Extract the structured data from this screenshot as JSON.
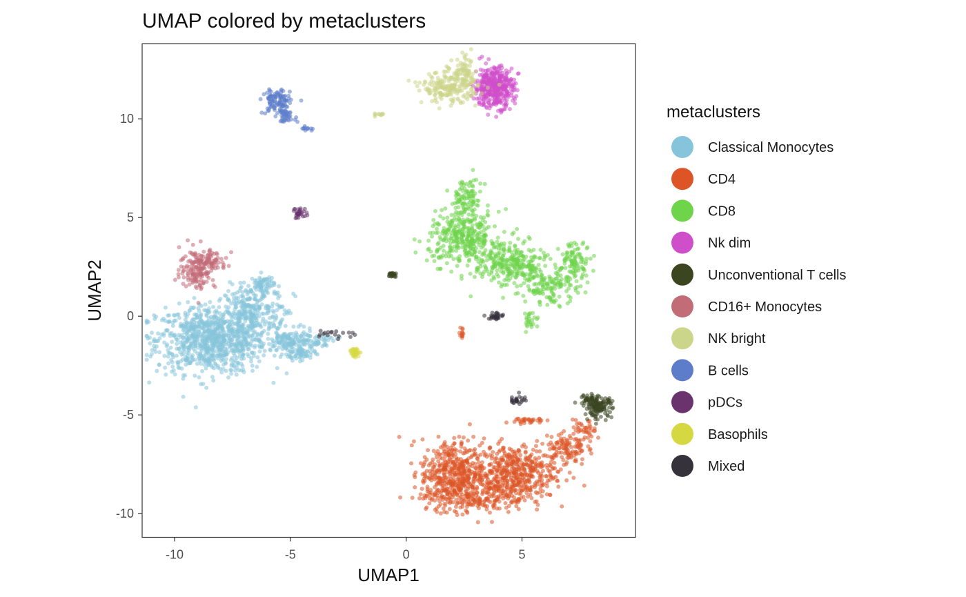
{
  "chart_data": {
    "type": "scatter",
    "title": "UMAP colored by metaclusters",
    "xlabel": "UMAP1",
    "ylabel": "UMAP2",
    "xlim": [
      -11.4,
      9.9
    ],
    "ylim": [
      -11.2,
      13.8
    ],
    "xticks": [
      -10,
      -5,
      0,
      5
    ],
    "xtick_labels": [
      "-10",
      "-5",
      "0",
      "5"
    ],
    "yticks": [
      -10,
      -5,
      0,
      5,
      10
    ],
    "ytick_labels": [
      "-10",
      "-5",
      "0",
      "5",
      "10"
    ],
    "grid": false,
    "legend": {
      "title": "metaclusters",
      "position": "right"
    },
    "series": [
      {
        "name": "Classical Monocytes",
        "color": "#86C4DB",
        "clusters": [
          {
            "cx": -8.4,
            "cy": -1.2,
            "sx": 1.4,
            "sy": 1.0,
            "n": 900
          },
          {
            "cx": -6.8,
            "cy": 0.2,
            "sx": 0.6,
            "sy": 0.8,
            "n": 220
          },
          {
            "cx": -6.2,
            "cy": 1.6,
            "sx": 0.3,
            "sy": 0.3,
            "n": 70
          },
          {
            "cx": -5.0,
            "cy": -1.3,
            "sx": 0.6,
            "sy": 0.35,
            "n": 140
          },
          {
            "cx": -4.6,
            "cy": -1.9,
            "sx": 0.4,
            "sy": 0.2,
            "n": 60
          },
          {
            "cx": -3.8,
            "cy": -1.2,
            "sx": 0.5,
            "sy": 0.2,
            "n": 40
          },
          {
            "cx": -5.5,
            "cy": 0.4,
            "sx": 0.4,
            "sy": 0.6,
            "n": 40
          }
        ]
      },
      {
        "name": "CD4",
        "color": "#DD5526",
        "clusters": [
          {
            "cx": 2.0,
            "cy": -7.9,
            "sx": 0.8,
            "sy": 1.0,
            "n": 400
          },
          {
            "cx": 4.6,
            "cy": -7.9,
            "sx": 1.1,
            "sy": 0.8,
            "n": 450
          },
          {
            "cx": 3.0,
            "cy": -9.0,
            "sx": 1.3,
            "sy": 0.55,
            "n": 250
          },
          {
            "cx": 6.9,
            "cy": -6.7,
            "sx": 0.5,
            "sy": 0.5,
            "n": 110
          },
          {
            "cx": 7.7,
            "cy": -5.8,
            "sx": 0.3,
            "sy": 0.3,
            "n": 40
          },
          {
            "cx": 5.3,
            "cy": -5.3,
            "sx": 0.4,
            "sy": 0.12,
            "n": 30
          },
          {
            "cx": 2.4,
            "cy": -0.9,
            "sx": 0.07,
            "sy": 0.2,
            "n": 12
          }
        ]
      },
      {
        "name": "CD8",
        "color": "#6ED44A",
        "clusters": [
          {
            "cx": 2.5,
            "cy": 4.0,
            "sx": 0.9,
            "sy": 0.8,
            "n": 350
          },
          {
            "cx": 2.6,
            "cy": 6.0,
            "sx": 0.4,
            "sy": 0.6,
            "n": 90
          },
          {
            "cx": 4.5,
            "cy": 2.6,
            "sx": 0.9,
            "sy": 0.7,
            "n": 280
          },
          {
            "cx": 6.3,
            "cy": 1.5,
            "sx": 0.7,
            "sy": 0.5,
            "n": 140
          },
          {
            "cx": 7.3,
            "cy": 2.9,
            "sx": 0.4,
            "sy": 0.5,
            "n": 90
          },
          {
            "cx": 5.4,
            "cy": -0.2,
            "sx": 0.2,
            "sy": 0.3,
            "n": 25
          }
        ]
      },
      {
        "name": "Nk dim",
        "color": "#CF4FCB",
        "clusters": [
          {
            "cx": 3.8,
            "cy": 11.6,
            "sx": 0.5,
            "sy": 0.6,
            "n": 420
          }
        ]
      },
      {
        "name": "Unconventional T cells",
        "color": "#3B4520",
        "clusters": [
          {
            "cx": 8.3,
            "cy": -4.6,
            "sx": 0.35,
            "sy": 0.3,
            "n": 120
          },
          {
            "cx": 7.9,
            "cy": -4.2,
            "sx": 0.3,
            "sy": 0.12,
            "n": 30
          },
          {
            "cx": -0.6,
            "cy": 2.1,
            "sx": 0.15,
            "sy": 0.08,
            "n": 25
          }
        ]
      },
      {
        "name": "CD16+ Monocytes",
        "color": "#C26C78",
        "clusters": [
          {
            "cx": -9.0,
            "cy": 2.4,
            "sx": 0.45,
            "sy": 0.6,
            "n": 150
          },
          {
            "cx": -8.4,
            "cy": 2.8,
            "sx": 0.4,
            "sy": 0.3,
            "n": 60
          }
        ]
      },
      {
        "name": "NK bright",
        "color": "#CCD68A",
        "clusters": [
          {
            "cx": 1.9,
            "cy": 11.6,
            "sx": 0.7,
            "sy": 0.45,
            "n": 220
          },
          {
            "cx": 2.5,
            "cy": 12.4,
            "sx": 0.3,
            "sy": 0.4,
            "n": 60
          },
          {
            "cx": -1.2,
            "cy": 10.2,
            "sx": 0.2,
            "sy": 0.05,
            "n": 12
          }
        ]
      },
      {
        "name": "B cells",
        "color": "#5D7DCA",
        "clusters": [
          {
            "cx": -5.6,
            "cy": 10.9,
            "sx": 0.35,
            "sy": 0.4,
            "n": 100
          },
          {
            "cx": -5.2,
            "cy": 10.2,
            "sx": 0.25,
            "sy": 0.2,
            "n": 45
          },
          {
            "cx": -4.3,
            "cy": 9.5,
            "sx": 0.2,
            "sy": 0.07,
            "n": 12
          }
        ]
      },
      {
        "name": "pDCs",
        "color": "#6A336E",
        "clusters": [
          {
            "cx": -4.6,
            "cy": 5.2,
            "sx": 0.18,
            "sy": 0.18,
            "n": 30
          }
        ]
      },
      {
        "name": "Basophils",
        "color": "#D6D841",
        "clusters": [
          {
            "cx": -2.2,
            "cy": -1.8,
            "sx": 0.12,
            "sy": 0.15,
            "n": 30
          }
        ]
      },
      {
        "name": "Mixed",
        "color": "#35323C",
        "clusters": [
          {
            "cx": 3.9,
            "cy": 0.0,
            "sx": 0.2,
            "sy": 0.12,
            "n": 30
          },
          {
            "cx": 4.8,
            "cy": -4.2,
            "sx": 0.2,
            "sy": 0.15,
            "n": 25
          },
          {
            "cx": -3.0,
            "cy": -0.9,
            "sx": 0.5,
            "sy": 0.15,
            "n": 18
          }
        ]
      }
    ]
  }
}
